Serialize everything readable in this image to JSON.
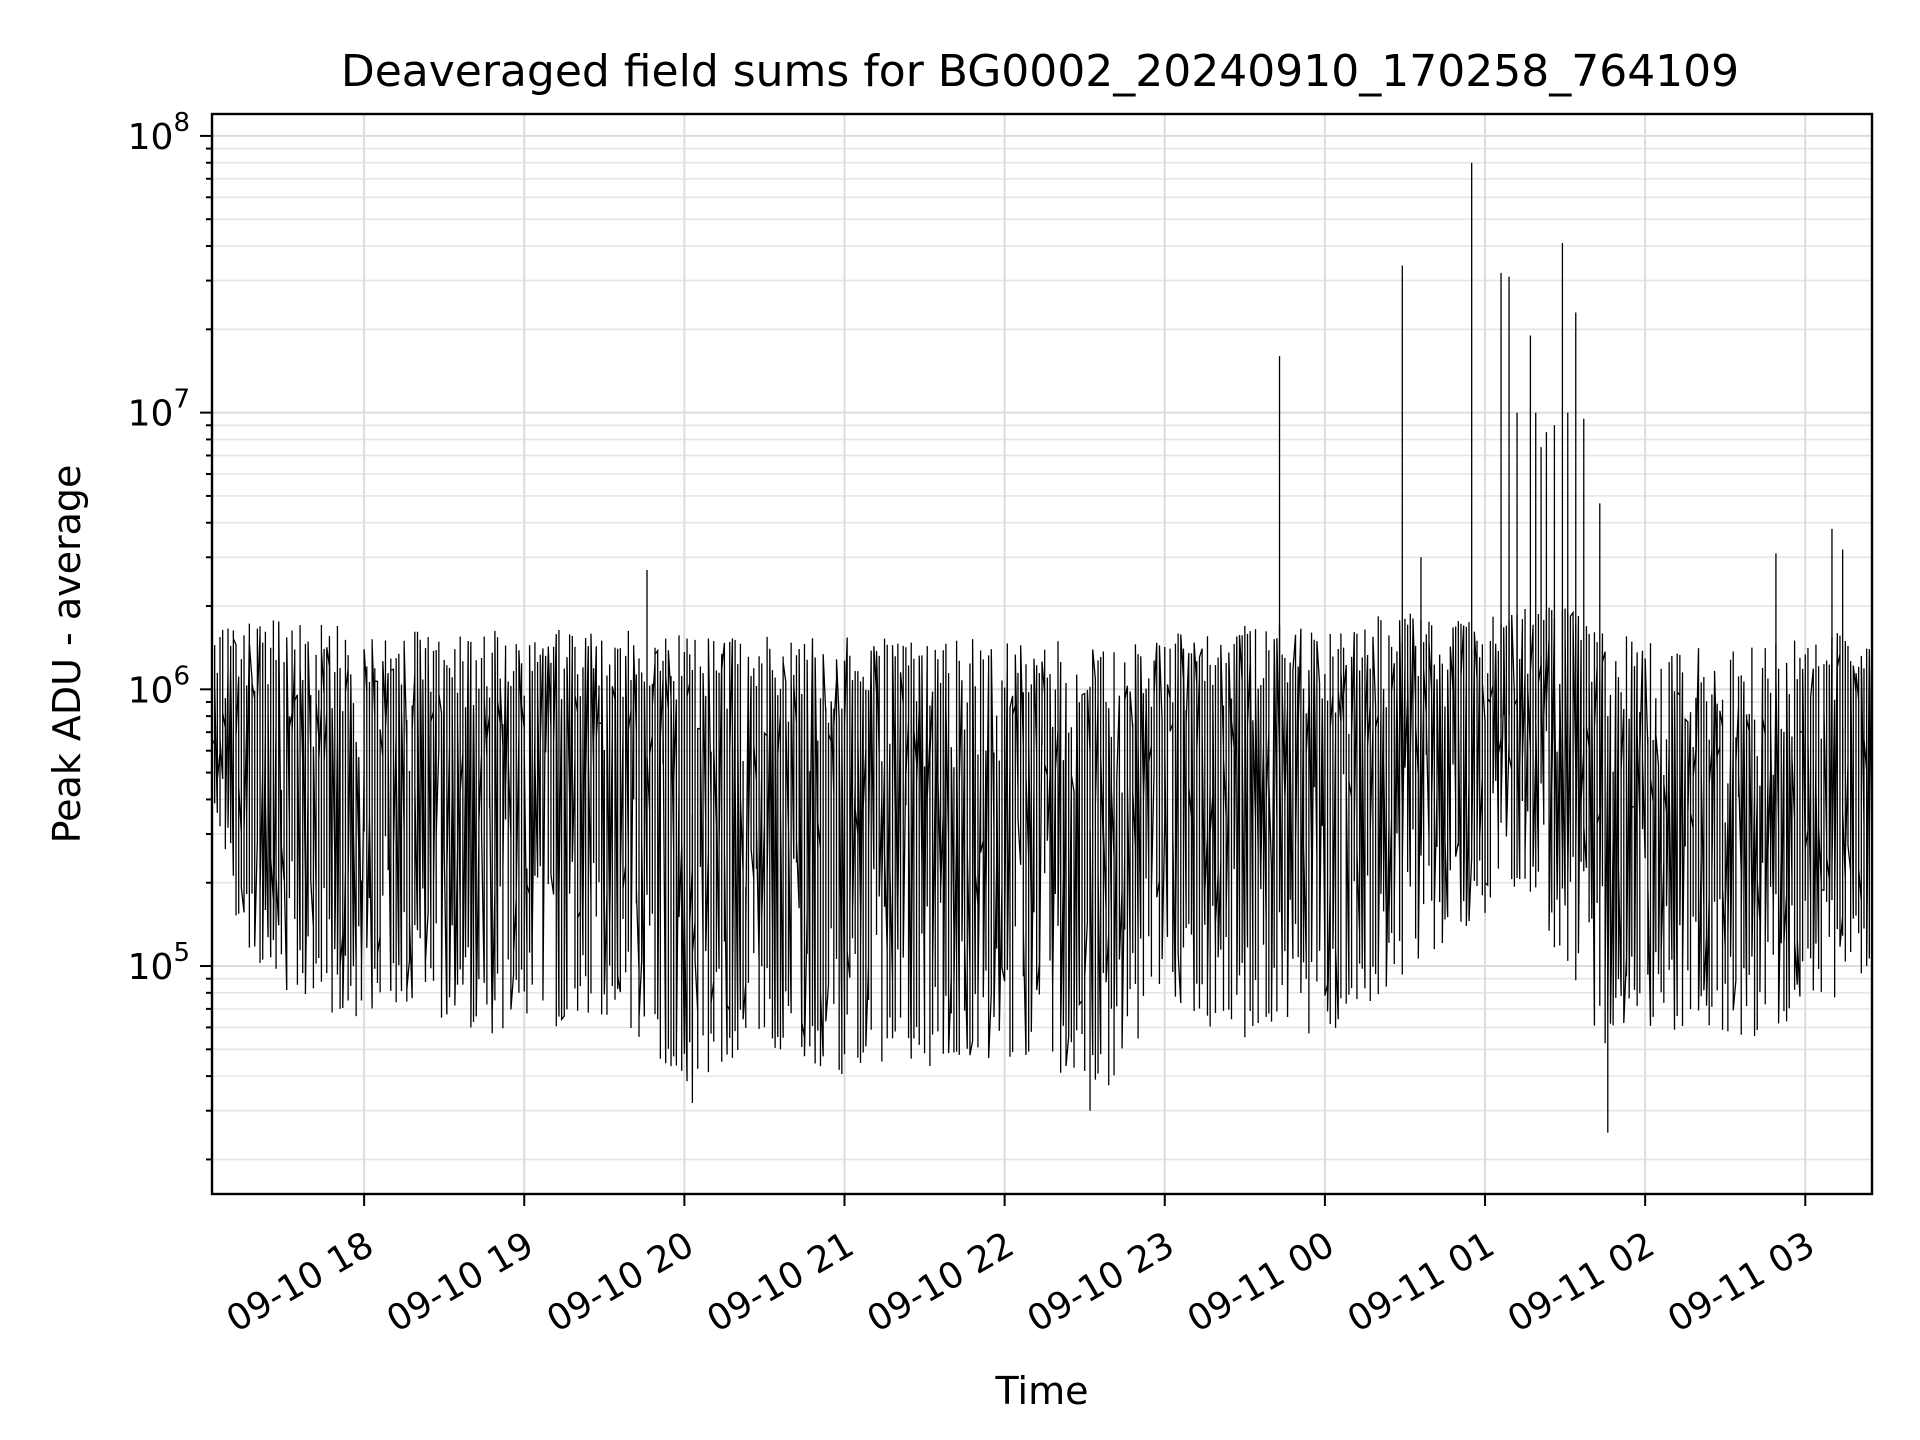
{
  "chart_data": {
    "type": "line",
    "title": "Deaveraged field sums for BG0002_20240910_170258_764109",
    "xlabel": "Time",
    "ylabel": "Peak ADU - average",
    "yscale": "log",
    "grid": true,
    "xlim": [
      "2024-09-10 17:03",
      "2024-09-11 03:25"
    ],
    "ylim": [
      15000,
      120000000
    ],
    "x_ticks": [
      {
        "t": "2024-09-10 18:00",
        "label": "09-10 18"
      },
      {
        "t": "2024-09-10 19:00",
        "label": "09-10 19"
      },
      {
        "t": "2024-09-10 20:00",
        "label": "09-10 20"
      },
      {
        "t": "2024-09-10 21:00",
        "label": "09-10 21"
      },
      {
        "t": "2024-09-10 22:00",
        "label": "09-10 22"
      },
      {
        "t": "2024-09-10 23:00",
        "label": "09-10 23"
      },
      {
        "t": "2024-09-11 00:00",
        "label": "09-11 00"
      },
      {
        "t": "2024-09-11 01:00",
        "label": "09-11 01"
      },
      {
        "t": "2024-09-11 02:00",
        "label": "09-11 02"
      },
      {
        "t": "2024-09-11 03:00",
        "label": "09-11 03"
      }
    ],
    "y_ticks": [
      {
        "v": 100000,
        "base": "10",
        "exp": "5"
      },
      {
        "v": 1000000,
        "base": "10",
        "exp": "6"
      },
      {
        "v": 10000000,
        "base": "10",
        "exp": "7"
      },
      {
        "v": 100000000,
        "base": "10",
        "exp": "8"
      }
    ],
    "series": [
      {
        "color": "#000000",
        "x": [
          "2024-09-10 17:03",
          "2024-09-10 17:15",
          "2024-09-10 17:30",
          "2024-09-10 17:45",
          "2024-09-10 18:00",
          "2024-09-10 18:15",
          "2024-09-10 18:30",
          "2024-09-10 18:45",
          "2024-09-10 19:00",
          "2024-09-10 19:15",
          "2024-09-10 19:30",
          "2024-09-10 19:45",
          "2024-09-10 20:00",
          "2024-09-10 20:05",
          "2024-09-10 20:15",
          "2024-09-10 20:30",
          "2024-09-10 20:45",
          "2024-09-10 21:00",
          "2024-09-10 21:15",
          "2024-09-10 21:30",
          "2024-09-10 21:45",
          "2024-09-10 22:00",
          "2024-09-10 22:15",
          "2024-09-10 22:30",
          "2024-09-10 22:35",
          "2024-09-10 22:45",
          "2024-09-10 23:00",
          "2024-09-10 23:15",
          "2024-09-10 23:30",
          "2024-09-10 23:45",
          "2024-09-11 00:00",
          "2024-09-11 00:15",
          "2024-09-11 00:30",
          "2024-09-11 00:45",
          "2024-09-11 01:00",
          "2024-09-11 01:15",
          "2024-09-11 01:30",
          "2024-09-11 01:45",
          "2024-09-11 02:00",
          "2024-09-11 02:15",
          "2024-09-11 02:30",
          "2024-09-11 02:45",
          "2024-09-11 03:00",
          "2024-09-11 03:15",
          "2024-09-11 03:25"
        ],
        "upper": [
          1700000,
          1750000,
          1800000,
          1750000,
          1650000,
          1700000,
          1600000,
          1650000,
          1600000,
          1650000,
          1600000,
          1650000,
          1650000,
          1600000,
          1550000,
          1600000,
          1550000,
          1550000,
          1550000,
          1550000,
          1550000,
          1500000,
          1500000,
          1500000,
          1450000,
          1450000,
          1600000,
          1650000,
          1700000,
          1700000,
          1600000,
          1800000,
          1900000,
          1800000,
          1800000,
          2000000,
          2000000,
          1700000,
          1500000,
          1450000,
          1450000,
          1500000,
          1500000,
          1700000,
          1400000
        ],
        "lower": [
          400000,
          120000,
          80000,
          70000,
          60000,
          70000,
          60000,
          55000,
          55000,
          60000,
          60000,
          50000,
          40000,
          33000,
          45000,
          50000,
          42000,
          40000,
          45000,
          42000,
          48000,
          45000,
          42000,
          38000,
          32000,
          45000,
          70000,
          60000,
          55000,
          60000,
          55000,
          70000,
          90000,
          120000,
          150000,
          200000,
          100000,
          50000,
          45000,
          60000,
          55000,
          55000,
          60000,
          80000,
          100000
        ],
        "median": [
          800000,
          650000,
          600000,
          600000,
          550000,
          600000,
          550000,
          550000,
          550000,
          560000,
          550000,
          520000,
          450000,
          300000,
          400000,
          420000,
          380000,
          380000,
          400000,
          380000,
          400000,
          380000,
          380000,
          330000,
          280000,
          360000,
          550000,
          560000,
          560000,
          560000,
          560000,
          600000,
          650000,
          700000,
          750000,
          850000,
          600000,
          350000,
          330000,
          400000,
          380000,
          380000,
          400000,
          500000,
          700000
        ]
      }
    ],
    "spikes": [
      {
        "t": "2024-09-10 19:46",
        "v": 2700000
      },
      {
        "t": "2024-09-10 23:43",
        "v": 16000000
      },
      {
        "t": "2024-09-11 00:29",
        "v": 34000000
      },
      {
        "t": "2024-09-11 00:36",
        "v": 3000000
      },
      {
        "t": "2024-09-11 00:55",
        "v": 80000000
      },
      {
        "t": "2024-09-11 01:06",
        "v": 32000000
      },
      {
        "t": "2024-09-11 01:09",
        "v": 31000000
      },
      {
        "t": "2024-09-11 01:12",
        "v": 10000000
      },
      {
        "t": "2024-09-11 01:17",
        "v": 19000000
      },
      {
        "t": "2024-09-11 01:19",
        "v": 10000000
      },
      {
        "t": "2024-09-11 01:21",
        "v": 7500000
      },
      {
        "t": "2024-09-11 01:23",
        "v": 8500000
      },
      {
        "t": "2024-09-11 01:26",
        "v": 9000000
      },
      {
        "t": "2024-09-11 01:29",
        "v": 41000000
      },
      {
        "t": "2024-09-11 01:31",
        "v": 10000000
      },
      {
        "t": "2024-09-11 01:34",
        "v": 23000000
      },
      {
        "t": "2024-09-11 01:37",
        "v": 9500000
      },
      {
        "t": "2024-09-11 01:43",
        "v": 4700000
      },
      {
        "t": "2024-09-11 02:49",
        "v": 3100000
      },
      {
        "t": "2024-09-11 03:10",
        "v": 3800000
      },
      {
        "t": "2024-09-11 03:14",
        "v": 3200000
      }
    ],
    "dips": [
      {
        "t": "2024-09-11 01:46",
        "v": 25000
      },
      {
        "t": "2024-09-10 22:32",
        "v": 30000
      },
      {
        "t": "2024-09-10 20:03",
        "v": 32000
      }
    ]
  }
}
